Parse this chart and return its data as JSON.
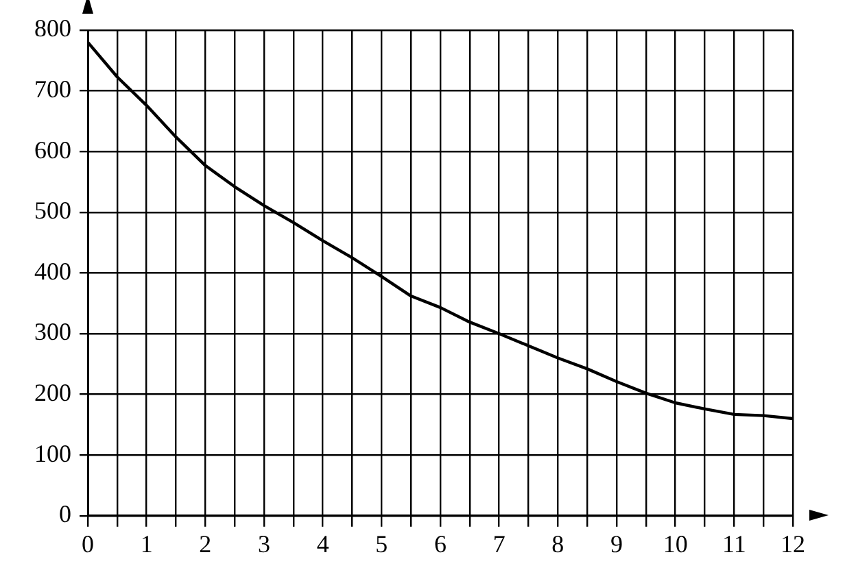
{
  "chart_data": {
    "type": "line",
    "x": [
      0,
      0.5,
      1,
      1.5,
      2,
      2.5,
      3,
      3.5,
      4,
      4.5,
      5,
      5.5,
      6,
      6.5,
      7,
      7.5,
      8,
      8.5,
      9,
      9.5,
      10,
      10.5,
      11,
      11.5,
      12
    ],
    "series": [
      {
        "color": "#000000",
        "values": [
          780,
          723,
          676,
          624,
          577,
          542,
          511,
          483,
          453,
          425,
          394,
          362,
          343,
          319,
          300,
          280,
          260,
          242,
          221,
          202,
          186,
          176,
          167,
          165,
          160
        ]
      }
    ],
    "xlim": [
      0,
      12
    ],
    "xticks": [
      0,
      {
        "value": 0.5,
        "label": null
      },
      1,
      {
        "value": 1.5,
        "label": null
      },
      2,
      {
        "value": 2.5,
        "label": null
      },
      3,
      {
        "value": 3.5,
        "label": null
      },
      4,
      {
        "value": 4.5,
        "label": null
      },
      5,
      {
        "value": 5.5,
        "label": null
      },
      6,
      {
        "value": 6.5,
        "label": null
      },
      7,
      {
        "value": 7.5,
        "label": null
      },
      8,
      {
        "value": 8.5,
        "label": null
      },
      9,
      {
        "value": 9.5,
        "label": null
      },
      10,
      {
        "value": 10.5,
        "label": null
      },
      11,
      {
        "value": 11.5,
        "label": null
      },
      12
    ],
    "ylim": [
      0,
      800
    ],
    "yticks": [
      0,
      100,
      200,
      300,
      400,
      500,
      600,
      700,
      800
    ],
    "grid": true,
    "legend": false,
    "marker": "none",
    "line_style": "solid"
  }
}
